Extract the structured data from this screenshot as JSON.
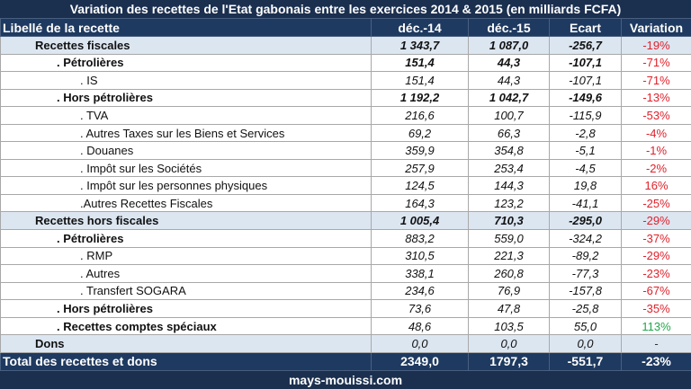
{
  "title": "Variation des recettes de l'Etat gabonais entre les exercices 2014 & 2015 (en milliards FCFA)",
  "headers": [
    "Libellé de la recette",
    "déc.-14",
    "déc.-15",
    "Ecart",
    "Variation"
  ],
  "rows": [
    {
      "label": "Recettes fiscales",
      "v14": "1 343,7",
      "v15": "1 087,0",
      "ecart": "-256,7",
      "var": "-19%",
      "level": 0,
      "bold": true,
      "sign": "neg"
    },
    {
      "label": ". Pétrolières",
      "v14": "151,4",
      "v15": "44,3",
      "ecart": "-107,1",
      "var": "-71%",
      "level": 1,
      "bold": true,
      "sign": "neg"
    },
    {
      "label": ". IS",
      "v14": "151,4",
      "v15": "44,3",
      "ecart": "-107,1",
      "var": "-71%",
      "level": 2,
      "bold": false,
      "sign": "neg"
    },
    {
      "label": ". Hors pétrolières",
      "v14": "1 192,2",
      "v15": "1 042,7",
      "ecart": "-149,6",
      "var": "-13%",
      "level": 1,
      "bold": true,
      "sign": "neg"
    },
    {
      "label": ". TVA",
      "v14": "216,6",
      "v15": "100,7",
      "ecart": "-115,9",
      "var": "-53%",
      "level": 2,
      "bold": false,
      "sign": "neg"
    },
    {
      "label": ". Autres Taxes sur les Biens et Services",
      "v14": "69,2",
      "v15": "66,3",
      "ecart": "-2,8",
      "var": "-4%",
      "level": 2,
      "bold": false,
      "sign": "neg"
    },
    {
      "label": ". Douanes",
      "v14": "359,9",
      "v15": "354,8",
      "ecart": "-5,1",
      "var": "-1%",
      "level": 2,
      "bold": false,
      "sign": "neg"
    },
    {
      "label": ". Impôt sur les Sociétés",
      "v14": "257,9",
      "v15": "253,4",
      "ecart": "-4,5",
      "var": "-2%",
      "level": 2,
      "bold": false,
      "sign": "neg"
    },
    {
      "label": ". Impôt sur les personnes physiques",
      "v14": "124,5",
      "v15": "144,3",
      "ecart": "19,8",
      "var": "16%",
      "level": 2,
      "bold": false,
      "sign": "neg"
    },
    {
      "label": ".Autres Recettes Fiscales",
      "v14": "164,3",
      "v15": "123,2",
      "ecart": "-41,1",
      "var": "-25%",
      "level": 2,
      "bold": false,
      "sign": "neg"
    },
    {
      "label": "Recettes hors fiscales",
      "v14": "1 005,4",
      "v15": "710,3",
      "ecart": "-295,0",
      "var": "-29%",
      "level": 0,
      "bold": true,
      "sign": "neg"
    },
    {
      "label": ". Pétrolières",
      "v14": "883,2",
      "v15": "559,0",
      "ecart": "-324,2",
      "var": "-37%",
      "level": 1,
      "bold": false,
      "sign": "neg"
    },
    {
      "label": ". RMP",
      "v14": "310,5",
      "v15": "221,3",
      "ecart": "-89,2",
      "var": "-29%",
      "level": 2,
      "bold": false,
      "sign": "neg"
    },
    {
      "label": ". Autres",
      "v14": "338,1",
      "v15": "260,8",
      "ecart": "-77,3",
      "var": "-23%",
      "level": 2,
      "bold": false,
      "sign": "neg"
    },
    {
      "label": ". Transfert SOGARA",
      "v14": "234,6",
      "v15": "76,9",
      "ecart": "-157,8",
      "var": "-67%",
      "level": 2,
      "bold": false,
      "sign": "neg"
    },
    {
      "label": ". Hors pétrolières",
      "v14": "73,6",
      "v15": "47,8",
      "ecart": "-25,8",
      "var": "-35%",
      "level": 1,
      "bold": false,
      "sign": "neg"
    },
    {
      "label": ". Recettes comptes spéciaux",
      "v14": "48,6",
      "v15": "103,5",
      "ecart": "55,0",
      "var": "113%",
      "level": 1,
      "bold": false,
      "sign": "pos"
    },
    {
      "label": "Dons",
      "v14": "0,0",
      "v15": "0,0",
      "ecart": "0,0",
      "var": "-",
      "level": 0,
      "bold": false,
      "sign": "nil"
    }
  ],
  "total": {
    "label": "Total des recettes et dons",
    "v14": "2349,0",
    "v15": "1797,3",
    "ecart": "-551,7",
    "var": "-23%"
  },
  "footer": "mays-mouissi.com"
}
